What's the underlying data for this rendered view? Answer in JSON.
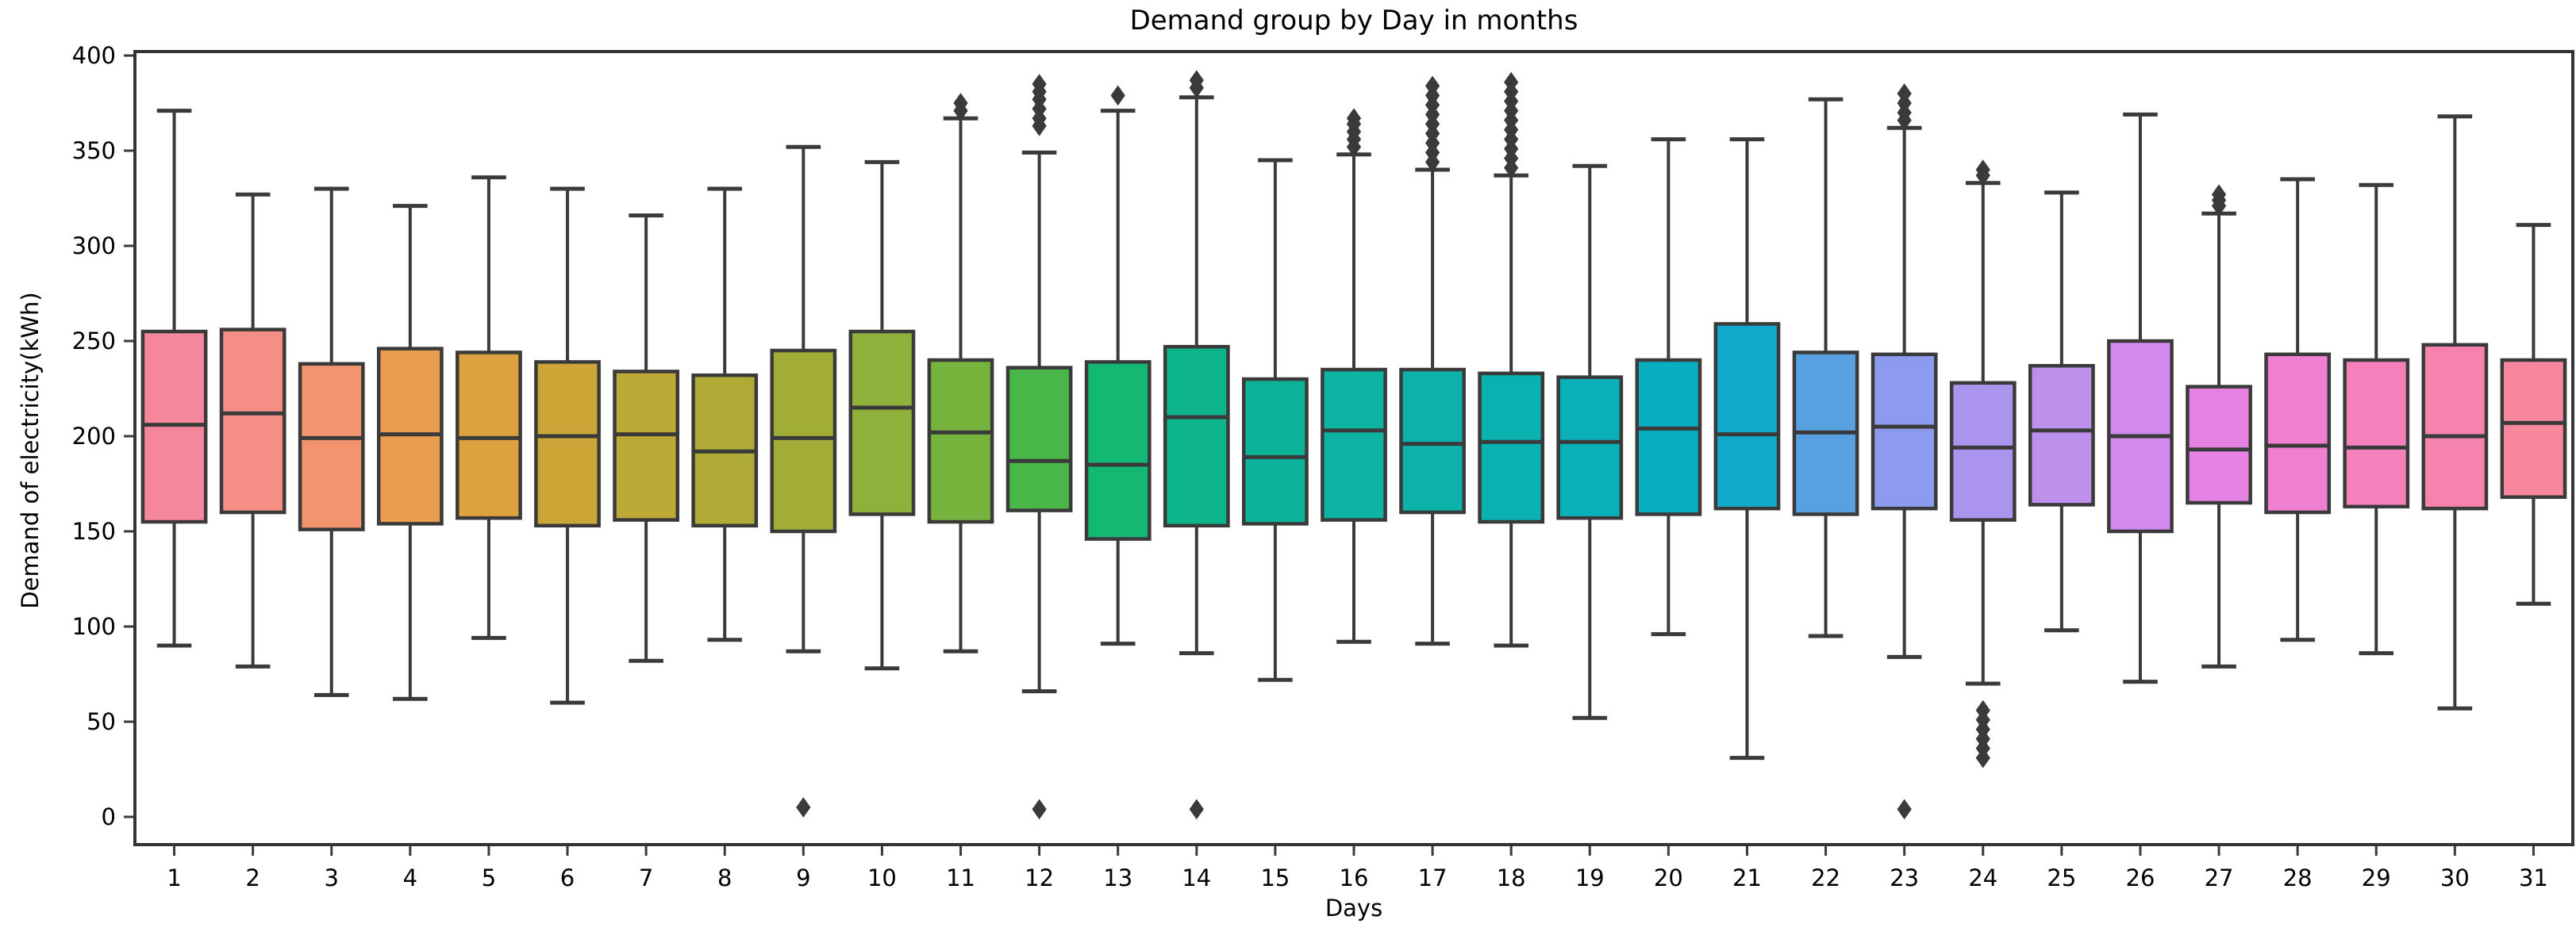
{
  "figure": {
    "background": "#ffffff",
    "title": "Demand group by Day in months",
    "ylabel": "Demand of electricity(kWh)",
    "xlabel": "Days"
  },
  "chart_data": {
    "type": "boxplot",
    "title": "Demand group by Day in months",
    "xlabel": "Days",
    "ylabel": "Demand of electricity(kWh)",
    "ylim": [
      -15,
      403
    ],
    "grid": false,
    "legend": "none",
    "y_ticks": [
      0,
      50,
      100,
      150,
      200,
      250,
      300,
      350,
      400
    ],
    "categories": [
      "1",
      "2",
      "3",
      "4",
      "5",
      "6",
      "7",
      "8",
      "9",
      "10",
      "11",
      "12",
      "13",
      "14",
      "15",
      "16",
      "17",
      "18",
      "19",
      "20",
      "21",
      "22",
      "23",
      "24",
      "25",
      "26",
      "27",
      "28",
      "29",
      "30",
      "31"
    ],
    "line_color": "#3a3a3a",
    "days": [
      {
        "day": "1",
        "whislo": 90,
        "q1": 155,
        "med": 206,
        "q3": 255,
        "whishi": 371,
        "fliers": [],
        "color": "#f5879d"
      },
      {
        "day": "2",
        "whislo": 79,
        "q1": 160,
        "med": 212,
        "q3": 256,
        "whishi": 327,
        "fliers": [],
        "color": "#f58f85"
      },
      {
        "day": "3",
        "whislo": 64,
        "q1": 151,
        "med": 199,
        "q3": 238,
        "whishi": 330,
        "fliers": [],
        "color": "#f2956e"
      },
      {
        "day": "4",
        "whislo": 62,
        "q1": 154,
        "med": 201,
        "q3": 246,
        "whishi": 321,
        "fliers": [],
        "color": "#e99d4f"
      },
      {
        "day": "5",
        "whislo": 94,
        "q1": 157,
        "med": 199,
        "q3": 244,
        "whishi": 336,
        "fliers": [],
        "color": "#dba23e"
      },
      {
        "day": "6",
        "whislo": 60,
        "q1": 153,
        "med": 200,
        "q3": 239,
        "whishi": 330,
        "fliers": [],
        "color": "#cba637"
      },
      {
        "day": "7",
        "whislo": 82,
        "q1": 156,
        "med": 201,
        "q3": 234,
        "whishi": 316,
        "fliers": [],
        "color": "#bda935"
      },
      {
        "day": "8",
        "whislo": 93,
        "q1": 153,
        "med": 192,
        "q3": 232,
        "whishi": 330,
        "fliers": [],
        "color": "#b0ab36"
      },
      {
        "day": "9",
        "whislo": 87,
        "q1": 150,
        "med": 199,
        "q3": 245,
        "whishi": 352,
        "fliers": [
          5
        ],
        "color": "#a2ad38"
      },
      {
        "day": "10",
        "whislo": 78,
        "q1": 159,
        "med": 215,
        "q3": 255,
        "whishi": 344,
        "fliers": [],
        "color": "#8fb03a"
      },
      {
        "day": "11",
        "whislo": 87,
        "q1": 155,
        "med": 202,
        "q3": 240,
        "whishi": 367,
        "fliers": [
          371,
          375
        ],
        "color": "#76b33d"
      },
      {
        "day": "12",
        "whislo": 66,
        "q1": 161,
        "med": 187,
        "q3": 236,
        "whishi": 349,
        "fliers": [
          363,
          367,
          372,
          377,
          381,
          385,
          4
        ],
        "color": "#49b648"
      },
      {
        "day": "13",
        "whislo": 91,
        "q1": 146,
        "med": 185,
        "q3": 239,
        "whishi": 371,
        "fliers": [
          379
        ],
        "color": "#13b872"
      },
      {
        "day": "14",
        "whislo": 86,
        "q1": 153,
        "med": 210,
        "q3": 247,
        "whishi": 378,
        "fliers": [
          383,
          387,
          4
        ],
        "color": "#0db489"
      },
      {
        "day": "15",
        "whislo": 72,
        "q1": 154,
        "med": 189,
        "q3": 230,
        "whishi": 345,
        "fliers": [],
        "color": "#0cb39b"
      },
      {
        "day": "16",
        "whislo": 92,
        "q1": 156,
        "med": 203,
        "q3": 235,
        "whishi": 348,
        "fliers": [
          352,
          356,
          360,
          364,
          367
        ],
        "color": "#0db3a3"
      },
      {
        "day": "17",
        "whislo": 91,
        "q1": 160,
        "med": 196,
        "q3": 235,
        "whishi": 340,
        "fliers": [
          344,
          349,
          354,
          359,
          364,
          369,
          374,
          379,
          384
        ],
        "color": "#0cb2aa"
      },
      {
        "day": "18",
        "whislo": 90,
        "q1": 155,
        "med": 197,
        "q3": 233,
        "whishi": 337,
        "fliers": [
          341,
          346,
          351,
          356,
          361,
          366,
          371,
          376,
          381,
          386
        ],
        "color": "#0bb1b0"
      },
      {
        "day": "19",
        "whislo": 52,
        "q1": 157,
        "med": 197,
        "q3": 231,
        "whishi": 342,
        "fliers": [],
        "color": "#0ab0b8"
      },
      {
        "day": "20",
        "whislo": 96,
        "q1": 159,
        "med": 204,
        "q3": 240,
        "whishi": 356,
        "fliers": [],
        "color": "#09adc0"
      },
      {
        "day": "21",
        "whislo": 31,
        "q1": 162,
        "med": 201,
        "q3": 259,
        "whishi": 356,
        "fliers": [],
        "color": "#12aacb"
      },
      {
        "day": "22",
        "whislo": 95,
        "q1": 159,
        "med": 202,
        "q3": 244,
        "whishi": 377,
        "fliers": [],
        "color": "#58a1e0"
      },
      {
        "day": "23",
        "whislo": 84,
        "q1": 162,
        "med": 205,
        "q3": 243,
        "whishi": 362,
        "fliers": [
          366,
          370,
          375,
          380,
          4
        ],
        "color": "#8d9bee"
      },
      {
        "day": "24",
        "whislo": 70,
        "q1": 156,
        "med": 194,
        "q3": 228,
        "whishi": 333,
        "fliers": [
          337,
          340,
          31,
          36,
          41,
          46,
          51,
          56
        ],
        "color": "#aa94ee"
      },
      {
        "day": "25",
        "whislo": 98,
        "q1": 164,
        "med": 203,
        "q3": 237,
        "whishi": 328,
        "fliers": [],
        "color": "#bd90ec"
      },
      {
        "day": "26",
        "whislo": 71,
        "q1": 150,
        "med": 200,
        "q3": 250,
        "whishi": 369,
        "fliers": [],
        "color": "#d189ec"
      },
      {
        "day": "27",
        "whislo": 79,
        "q1": 165,
        "med": 193,
        "q3": 226,
        "whishi": 317,
        "fliers": [
          321,
          324,
          327
        ],
        "color": "#e682e2"
      },
      {
        "day": "28",
        "whislo": 93,
        "q1": 160,
        "med": 195,
        "q3": 243,
        "whishi": 335,
        "fliers": [],
        "color": "#ef7fd1"
      },
      {
        "day": "29",
        "whislo": 86,
        "q1": 163,
        "med": 194,
        "q3": 240,
        "whishi": 332,
        "fliers": [],
        "color": "#f480bc"
      },
      {
        "day": "30",
        "whislo": 57,
        "q1": 162,
        "med": 200,
        "q3": 248,
        "whishi": 368,
        "fliers": [],
        "color": "#f583ae"
      },
      {
        "day": "31",
        "whislo": 112,
        "q1": 168,
        "med": 207,
        "q3": 240,
        "whishi": 311,
        "fliers": [],
        "color": "#f6879c"
      }
    ]
  }
}
